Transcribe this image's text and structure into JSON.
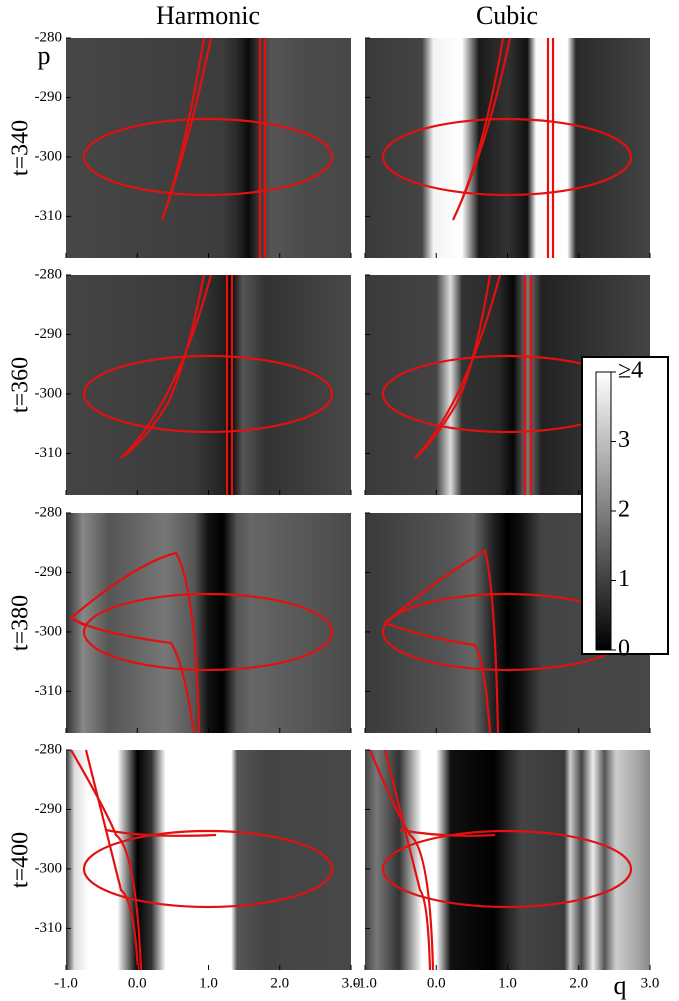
{
  "chart_data": {
    "type": "heatmap",
    "columns": [
      "Harmonic",
      "Cubic"
    ],
    "rows": [
      "t=340",
      "t=360",
      "t=380",
      "t=400"
    ],
    "xlabel": "q",
    "ylabel": "p",
    "xlim": [
      -1,
      3
    ],
    "xticks": [
      {
        "value": -1,
        "label": "-1.0"
      },
      {
        "value": 0,
        "label": "0.0"
      },
      {
        "value": 1,
        "label": "1.0"
      },
      {
        "value": 2,
        "label": "2.0"
      },
      {
        "value": 3,
        "label": "3.0"
      }
    ],
    "ylim": [
      -280,
      -317
    ],
    "yticks": [
      -280,
      -290,
      -300,
      -310
    ],
    "colorbar": {
      "lim": [
        0,
        4
      ],
      "ticks": [
        0,
        1,
        2,
        3,
        {
          "value": 4,
          "label": "≥4"
        }
      ]
    }
  }
}
